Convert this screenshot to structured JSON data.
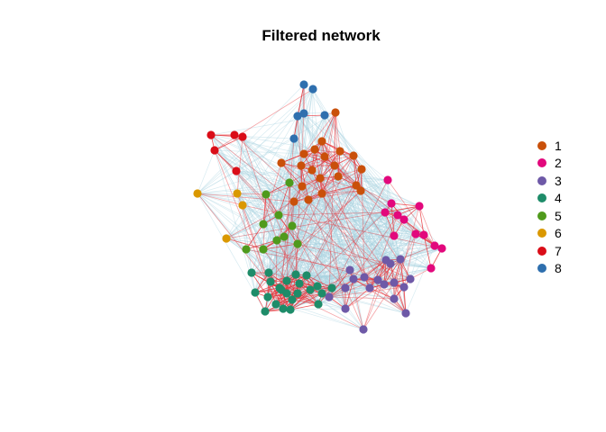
{
  "title": "Filtered network",
  "legend": [
    {
      "label": "1",
      "color": "#C9500A"
    },
    {
      "label": "2",
      "color": "#E2087C"
    },
    {
      "label": "3",
      "color": "#6E59A7"
    },
    {
      "label": "4",
      "color": "#1E8C69"
    },
    {
      "label": "5",
      "color": "#4F9A1C"
    },
    {
      "label": "6",
      "color": "#DA9800"
    },
    {
      "label": "7",
      "color": "#DA0D18"
    },
    {
      "label": "8",
      "color": "#2E6FAE"
    }
  ],
  "edge_colors": {
    "within_cluster": "#E8343A",
    "between_cluster": "#A9D3E0"
  }
}
